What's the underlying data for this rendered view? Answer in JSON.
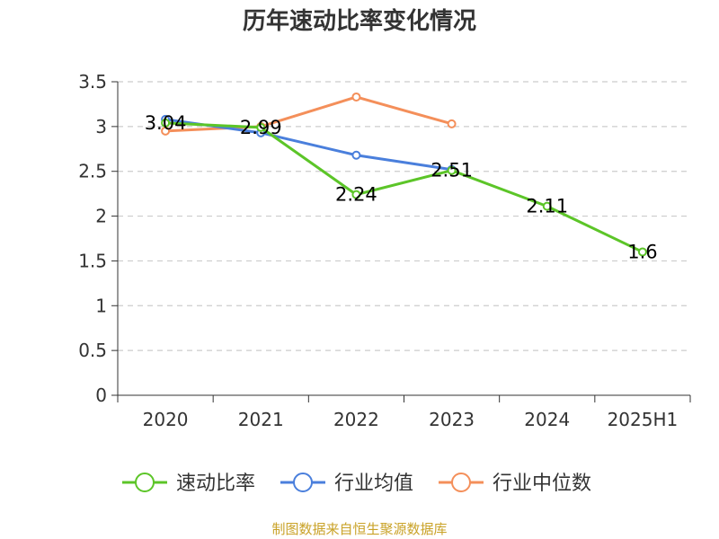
{
  "title": "历年速动比率变化情况",
  "source": "制图数据来自恒生聚源数据库",
  "chart_data": {
    "type": "line",
    "title": "历年速动比率变化情况",
    "categories": [
      "2020",
      "2021",
      "2022",
      "2023",
      "2024",
      "2025H1"
    ],
    "ylim": [
      0,
      3.5
    ],
    "yticks": [
      "0",
      "0.5",
      "1",
      "1.5",
      "2",
      "2.5",
      "3",
      "3.5"
    ],
    "grid": true,
    "legend_position": "bottom",
    "series": [
      {
        "name": "速动比率",
        "color": "#5cc528",
        "values": [
          3.04,
          2.99,
          2.24,
          2.51,
          2.11,
          1.6
        ],
        "labels": [
          "3.04",
          "2.99",
          "2.24",
          "2.51",
          "2.11",
          "1.6"
        ]
      },
      {
        "name": "行业均值",
        "color": "#4a7fdc",
        "values": [
          3.08,
          2.93,
          2.68,
          2.52,
          null,
          null
        ]
      },
      {
        "name": "行业中位数",
        "color": "#f48f5a",
        "values": [
          2.95,
          3.0,
          3.33,
          3.03,
          null,
          null
        ]
      }
    ]
  }
}
